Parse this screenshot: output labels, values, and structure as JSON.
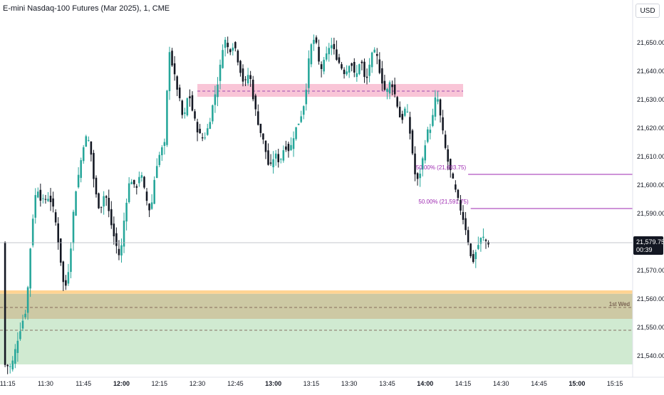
{
  "title": "E-mini Nasdaq-100 Futures (Mar 2025), 1, CME",
  "currency_button": "USD",
  "last_price": {
    "value": "21,579.75",
    "countdown": "00:39"
  },
  "colors": {
    "up": "#26a69a",
    "down": "#131722",
    "pink_zone": "#f8bbd0",
    "green_zone": "#c8e6c9",
    "olive_zone": "#c8c39a",
    "orange_line": "#ffcc80",
    "fib_line": "#9c27b0",
    "last_price_line": "#b2b5be"
  },
  "chart_data": {
    "type": "candlestick",
    "title": "E-mini Nasdaq-100 Futures (Mar 2025), 1, CME",
    "ylim": [
      21535,
      21665
    ],
    "xlim_minutes": [
      "11:12",
      "15:22"
    ],
    "y_ticks": [
      21540,
      21550,
      21560,
      21570,
      21580,
      21590,
      21600,
      21610,
      21620,
      21630,
      21640,
      21650
    ],
    "y_tick_labels": [
      "21,540.00",
      "21,550.00",
      "21,560.00",
      "21,570.00",
      "21,580.00",
      "21,590.00",
      "21,600.00",
      "21,610.00",
      "21,620.00",
      "21,630.00",
      "21,640.00",
      "21,650.00"
    ],
    "x_ticks": [
      "11:15",
      "11:30",
      "11:45",
      "12:00",
      "12:15",
      "12:30",
      "12:45",
      "13:00",
      "13:15",
      "13:30",
      "13:45",
      "14:00",
      "14:15",
      "14:30",
      "14:45",
      "15:00",
      "15:15"
    ],
    "x_ticks_bold": [
      "12:00",
      "13:00",
      "14:00",
      "15:00"
    ],
    "price_path": [
      [
        "11:14",
        21537
      ],
      [
        "11:17",
        21536
      ],
      [
        "11:20",
        21548
      ],
      [
        "11:23",
        21557
      ],
      [
        "11:25",
        21585
      ],
      [
        "11:27",
        21600
      ],
      [
        "11:29",
        21594
      ],
      [
        "11:32",
        21596
      ],
      [
        "11:34",
        21590
      ],
      [
        "11:36",
        21577
      ],
      [
        "11:38",
        21562
      ],
      [
        "11:40",
        21573
      ],
      [
        "11:42",
        21596
      ],
      [
        "11:44",
        21606
      ],
      [
        "11:46",
        21617
      ],
      [
        "11:48",
        21615
      ],
      [
        "11:50",
        21598
      ],
      [
        "11:52",
        21591
      ],
      [
        "11:54",
        21598
      ],
      [
        "11:56",
        21588
      ],
      [
        "11:58",
        21580
      ],
      [
        "12:00",
        21574
      ],
      [
        "12:02",
        21592
      ],
      [
        "12:04",
        21603
      ],
      [
        "12:06",
        21598
      ],
      [
        "12:08",
        21605
      ],
      [
        "12:10",
        21596
      ],
      [
        "12:12",
        21590
      ],
      [
        "12:14",
        21606
      ],
      [
        "12:16",
        21612
      ],
      [
        "12:18",
        21615
      ],
      [
        "12:19",
        21650
      ],
      [
        "12:21",
        21640
      ],
      [
        "12:23",
        21632
      ],
      [
        "12:25",
        21622
      ],
      [
        "12:27",
        21633
      ],
      [
        "12:29",
        21624
      ],
      [
        "12:31",
        21618
      ],
      [
        "12:33",
        21616
      ],
      [
        "12:35",
        21621
      ],
      [
        "12:37",
        21630
      ],
      [
        "12:39",
        21638
      ],
      [
        "12:41",
        21652
      ],
      [
        "12:43",
        21647
      ],
      [
        "12:45",
        21650
      ],
      [
        "12:47",
        21642
      ],
      [
        "12:49",
        21635
      ],
      [
        "12:51",
        21640
      ],
      [
        "12:53",
        21628
      ],
      [
        "12:55",
        21620
      ],
      [
        "12:57",
        21614
      ],
      [
        "12:59",
        21605
      ],
      [
        "13:01",
        21611
      ],
      [
        "13:03",
        21608
      ],
      [
        "13:05",
        21614
      ],
      [
        "13:07",
        21612
      ],
      [
        "13:09",
        21619
      ],
      [
        "13:11",
        21623
      ],
      [
        "13:13",
        21630
      ],
      [
        "13:15",
        21648
      ],
      [
        "13:17",
        21652
      ],
      [
        "13:19",
        21640
      ],
      [
        "13:21",
        21644
      ],
      [
        "13:23",
        21650
      ],
      [
        "13:25",
        21646
      ],
      [
        "13:27",
        21642
      ],
      [
        "13:29",
        21639
      ],
      [
        "13:31",
        21644
      ],
      [
        "13:33",
        21637
      ],
      [
        "13:35",
        21645
      ],
      [
        "13:37",
        21635
      ],
      [
        "13:39",
        21645
      ],
      [
        "13:41",
        21647
      ],
      [
        "13:43",
        21638
      ],
      [
        "13:45",
        21632
      ],
      [
        "13:47",
        21637
      ],
      [
        "13:49",
        21630
      ],
      [
        "13:51",
        21622
      ],
      [
        "13:53",
        21628
      ],
      [
        "13:55",
        21615
      ],
      [
        "13:57",
        21600
      ],
      [
        "13:59",
        21606
      ],
      [
        "14:01",
        21618
      ],
      [
        "14:03",
        21621
      ],
      [
        "14:05",
        21633
      ],
      [
        "14:07",
        21621
      ],
      [
        "14:09",
        21610
      ],
      [
        "14:11",
        21603
      ],
      [
        "14:13",
        21596
      ],
      [
        "14:15",
        21590
      ],
      [
        "14:17",
        21583
      ],
      [
        "14:19",
        21572
      ],
      [
        "14:21",
        21578
      ],
      [
        "14:23",
        21582
      ],
      [
        "14:25",
        21579.75
      ]
    ],
    "zones": [
      {
        "name": "pink",
        "from": 21631,
        "to": 21635.5,
        "start": "12:30",
        "end": "14:15"
      },
      {
        "name": "orange",
        "from": 21561.8,
        "to": 21563,
        "start": "11:12",
        "end": "15:22"
      },
      {
        "name": "olive",
        "from": 21553,
        "to": 21561.8,
        "start": "11:12",
        "end": "15:22"
      },
      {
        "name": "green",
        "from": 21537,
        "to": 21553,
        "start": "11:12",
        "end": "15:22"
      }
    ],
    "dashed_levels": [
      {
        "y": 21633,
        "start": "12:30",
        "end": "14:15"
      },
      {
        "y": 21557,
        "start": "11:12",
        "end": "15:22"
      },
      {
        "y": 21549,
        "start": "11:12",
        "end": "15:22"
      }
    ],
    "fib_levels": [
      {
        "y": 21603.75,
        "label": "50.00% (21,603.75)",
        "start": "14:17",
        "end": "15:22"
      },
      {
        "y": 21591.75,
        "label": "50.00% (21,591.75)",
        "start": "14:18",
        "end": "15:22"
      }
    ],
    "annotations": [
      {
        "text": "1st Wed",
        "y": 21557
      }
    ],
    "last_price": 21579.75
  }
}
